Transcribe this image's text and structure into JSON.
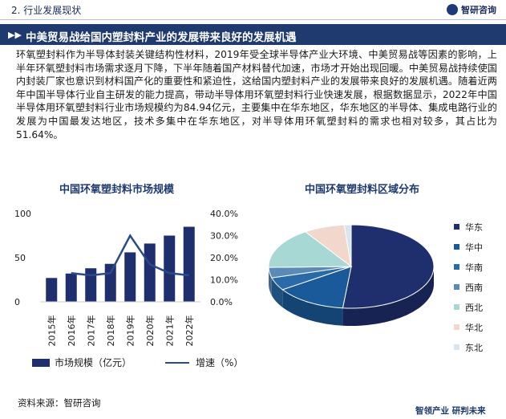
{
  "header": {
    "section_title": "2. 行业发展现状",
    "logo_text": "智研咨询"
  },
  "banner": {
    "title": "中美贸易战给国内塑封料产业的发展带来良好的发展机遇"
  },
  "body_text": "环氧塑封料作为半导体封装关键结构性材料，2019年受全球半导体产业大环境、中美贸易战等因素的影响，上半年环氧塑封料市场需求逐月下降，下半年随着国产材料替代加速，市场才开始出现回暖。中美贸易战持续使国内封装厂家也意识到材料国产化的重要性和紧迫性，这给国内塑封料产业的发展带来良好的发展机遇。随着近两年中国半导体行业自主研发的能力提高，带动半导体用环氧塑封料行业快速发展，根据数据显示，2022年中国半导体用环氧塑封料行业市场规模约为84.94亿元，主要集中在华东地区，华东地区的半导体、集成电路行业的发展为中国最发达地区，技术多集中在华东地区，对半导体用环氧塑封料的需求也相对较多，其占比为51.64%。",
  "chart_data": [
    {
      "type": "bar",
      "title": "中国环氧塑封料市场规模",
      "categories": [
        "2015年",
        "2016年",
        "2017年",
        "2018年",
        "2019年",
        "2020年",
        "2021年",
        "2022年"
      ],
      "series": [
        {
          "name": "市场规模（亿元）",
          "type": "bar",
          "axis": "left",
          "values": [
            27,
            32,
            38,
            43,
            56,
            66,
            75,
            85
          ]
        },
        {
          "name": "增速（%）",
          "type": "line",
          "axis": "right",
          "values": [
            null,
            13.0,
            12.0,
            13.0,
            30.0,
            17.0,
            13.0,
            12.0
          ]
        }
      ],
      "left_axis": {
        "ticks": [
          "100",
          "50",
          "0"
        ],
        "ylim": [
          0,
          100
        ]
      },
      "right_axis": {
        "ticks": [
          "40.0%",
          "30.0%",
          "20.0%",
          "10.0%",
          "0.0%"
        ],
        "ylim": [
          0,
          40
        ]
      },
      "colors": {
        "bar": "#1f2f6e",
        "line": "#2a4a8a"
      },
      "legend_position": "bottom"
    },
    {
      "type": "pie",
      "title": "中国环氧塑封料区域分布",
      "labels": [
        "华东",
        "华中",
        "华南",
        "西南",
        "西北",
        "华北",
        "东北"
      ],
      "values": [
        51.64,
        14,
        5,
        4,
        16,
        8,
        1.36
      ],
      "colors": [
        "#1f2f6e",
        "#1a5a9a",
        "#2a6aa8",
        "#5a8ab8",
        "#a8d8d4",
        "#f2d8cc",
        "#d8e4ee"
      ],
      "legend_position": "right"
    }
  ]
}
